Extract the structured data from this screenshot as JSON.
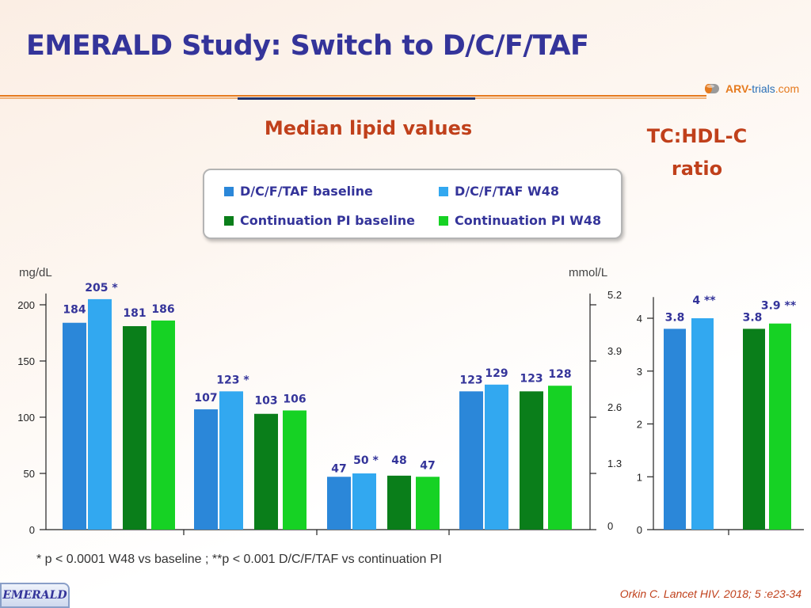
{
  "title": "EMERALD Study: Switch to D/C/F/TAF",
  "logo": {
    "part1": "ARV-",
    "part2": "trials",
    "part3": ".com"
  },
  "subtitle": "Median lipid values",
  "ratio_title_line1": "TC:HDL-C",
  "ratio_title_line2": "ratio",
  "footnote": "* p < 0.0001 W48 vs baseline ; **p < 0.001 D/C/F/TAF vs continuation PI",
  "citation": "Orkin C. Lancet HIV. 2018; 5 :e23-34",
  "badge": "EMERALD",
  "colors": {
    "dcftaf_baseline": "#2b87d9",
    "dcftaf_w48": "#32a8f0",
    "cont_baseline": "#0a7e1a",
    "cont_w48": "#16d224",
    "title": "#34349a",
    "accent": "#c0401b"
  },
  "chart_data": [
    {
      "type": "bar",
      "title": "Median lipid values",
      "ylabel": "mg/dL",
      "ylabel_right": "mmol/L",
      "ylim": [
        0,
        210
      ],
      "yticks": [
        "0",
        "50",
        "100",
        "150",
        "200"
      ],
      "ytick_values": [
        0,
        50,
        100,
        150,
        200
      ],
      "right_ticks": [
        "0",
        "1.3",
        "2.6",
        "3.9",
        "5.2"
      ],
      "right_tick_values": [
        0,
        50,
        100,
        150,
        200
      ],
      "groups": 4,
      "series": [
        {
          "name": "D/C/F/TAF baseline",
          "color_key": "dcftaf_baseline",
          "values": [
            184,
            107,
            47,
            123
          ],
          "labels": [
            "184",
            "107",
            "47",
            "123"
          ]
        },
        {
          "name": "D/C/F/TAF W48",
          "color_key": "dcftaf_w48",
          "values": [
            205,
            123,
            50,
            129
          ],
          "labels": [
            "205 *",
            "123 *",
            "50 *",
            "129"
          ]
        },
        {
          "name": "Continuation PI baseline",
          "color_key": "cont_baseline",
          "values": [
            181,
            103,
            48,
            123
          ],
          "labels": [
            "181",
            "103",
            "48",
            "123"
          ]
        },
        {
          "name": "Continuation PI W48",
          "color_key": "cont_w48",
          "values": [
            186,
            106,
            47,
            128
          ],
          "labels": [
            "186",
            "106",
            "47",
            "128"
          ]
        }
      ]
    },
    {
      "type": "bar",
      "title": "TC:HDL-C ratio",
      "ylim": [
        0,
        4.4
      ],
      "yticks": [
        "0",
        "1",
        "2",
        "3",
        "4"
      ],
      "ytick_values": [
        0,
        1,
        2,
        3,
        4
      ],
      "series": [
        {
          "name": "D/C/F/TAF baseline",
          "color_key": "dcftaf_baseline",
          "value": 3.8,
          "label": "3.8"
        },
        {
          "name": "D/C/F/TAF W48",
          "color_key": "dcftaf_w48",
          "value": 4.0,
          "label": "4 **"
        },
        {
          "name": "Continuation PI baseline",
          "color_key": "cont_baseline",
          "value": 3.8,
          "label": "3.8"
        },
        {
          "name": "Continuation PI W48",
          "color_key": "cont_w48",
          "value": 3.9,
          "label": "3.9 **"
        }
      ]
    }
  ]
}
